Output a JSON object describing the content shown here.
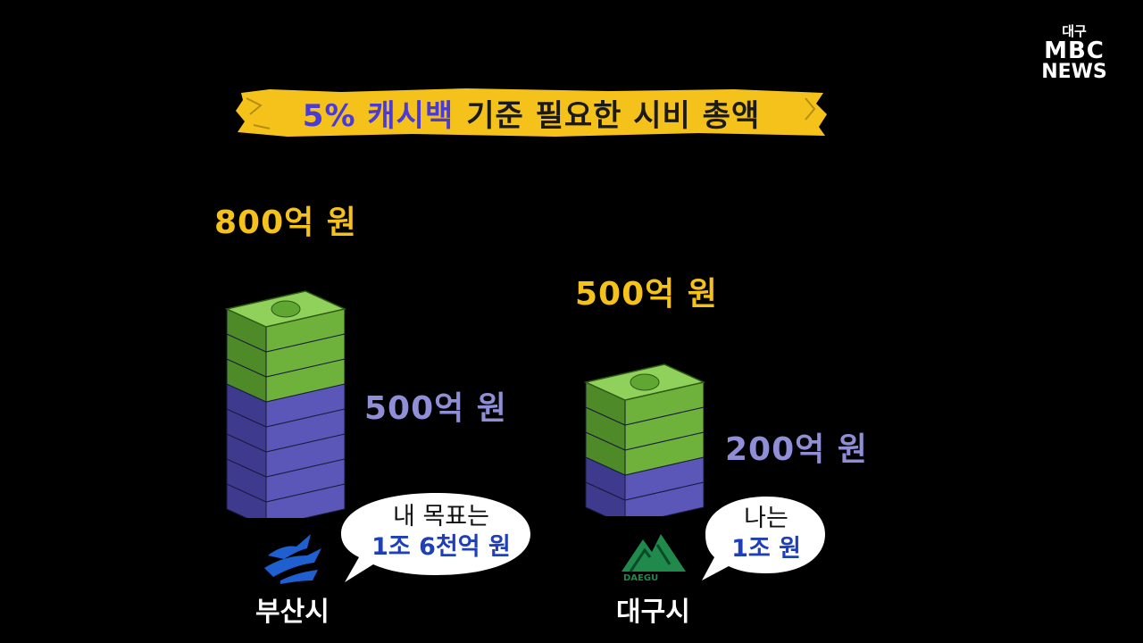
{
  "broadcaster": {
    "region": "대구",
    "brand": "MBC",
    "sub": "NEWS"
  },
  "title": {
    "accent": "5% 캐시백",
    "rest": "기준 필요한 시비 총액"
  },
  "busan": {
    "total_label": "800억 원",
    "base_label": "500억 원",
    "bubble_line1": "내 목표는",
    "bubble_line2": "1조 6천억 원",
    "city_name": "부산시",
    "stack_total_units": 8,
    "stack_base_units": 5
  },
  "daegu": {
    "total_label": "500억 원",
    "base_label": "200억 원",
    "bubble_line1": "나는",
    "bubble_line2": "1조 원",
    "city_name": "대구시",
    "logo_text": "DAEGU",
    "stack_total_units": 5,
    "stack_base_units": 2
  },
  "colors": {
    "banner_yellow": "#f5c21b",
    "money_green": "#6fb23b",
    "money_purple": "#5b57b8",
    "total_text": "#f5c21b",
    "base_text": "#8f8ed6"
  }
}
